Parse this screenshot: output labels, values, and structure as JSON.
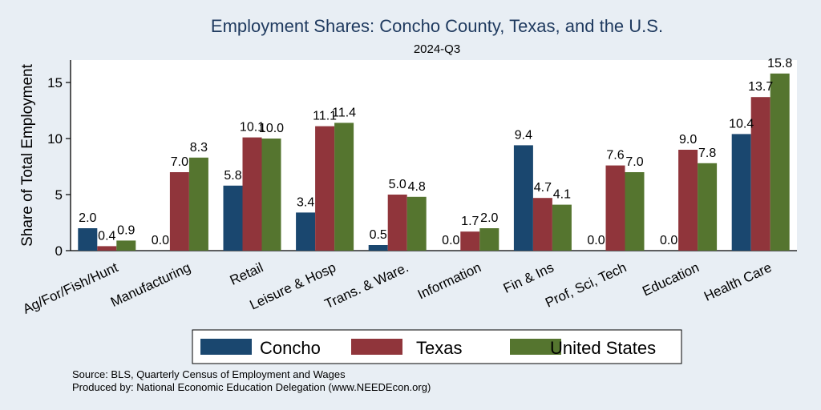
{
  "chart_data": {
    "type": "bar",
    "title": "Employment Shares: Concho County, Texas, and the U.S.",
    "subtitle": "2024-Q3",
    "ylabel": "Share of Total Employment",
    "ylim": [
      0,
      17
    ],
    "yticks": [
      0,
      5,
      10,
      15
    ],
    "grid": false,
    "legend_position": "bottom",
    "categories": [
      "Ag/For/Fish/Hunt",
      "Manufacturing",
      "Retail",
      "Leisure & Hosp",
      "Trans. & Ware.",
      "Information",
      "Fin & Ins",
      "Prof, Sci, Tech",
      "Education",
      "Health Care"
    ],
    "series": [
      {
        "name": "Concho",
        "color": "#1a476f",
        "values": [
          2.0,
          0.0,
          5.8,
          3.4,
          0.5,
          0.0,
          9.4,
          0.0,
          0.0,
          10.4
        ]
      },
      {
        "name": "Texas",
        "color": "#90353b",
        "values": [
          0.4,
          7.0,
          10.1,
          11.1,
          5.0,
          1.7,
          4.7,
          7.6,
          9.0,
          13.7
        ]
      },
      {
        "name": "United States",
        "color": "#55752f",
        "values": [
          0.9,
          8.3,
          10.0,
          11.4,
          4.8,
          2.0,
          4.1,
          7.0,
          7.8,
          15.8
        ]
      }
    ],
    "notes": [
      "Source: BLS, Quarterly Census of Employment and Wages",
      "Produced by: National Economic Education Delegation (www.NEEDEcon.org)"
    ]
  }
}
